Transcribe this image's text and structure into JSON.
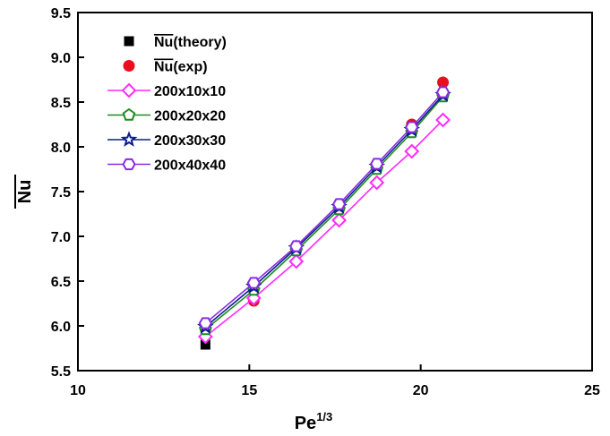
{
  "chart_data": {
    "type": "line",
    "xlabel": "Pe",
    "xlabel_sup": "1/3",
    "ylabel": "Nu",
    "ylabel_overline": true,
    "xlim": [
      10,
      25
    ],
    "ylim": [
      5.5,
      9.5
    ],
    "xticks": [
      10,
      15,
      20,
      25
    ],
    "yticks": [
      5.5,
      6.0,
      6.5,
      7.0,
      7.5,
      8.0,
      8.5,
      9.0,
      9.5
    ],
    "ytick_labels": [
      "5.5",
      "6.0",
      "6.5",
      "7.0",
      "7.5",
      "8.0",
      "8.5",
      "9.0",
      "9.5"
    ],
    "grid": false,
    "legend_position": "top-left",
    "series": [
      {
        "name": "Nu(theory)",
        "overline": "Nu",
        "suffix": "(theory)",
        "marker": "square",
        "color": "#000000",
        "line": false,
        "x": [
          13.72
        ],
        "y": [
          5.79
        ]
      },
      {
        "name": "Nu(exp)",
        "overline": "Nu",
        "suffix": "(exp)",
        "marker": "circle",
        "color": "#e8101e",
        "line": false,
        "x": [
          15.13,
          19.74,
          20.65
        ],
        "y": [
          6.28,
          8.25,
          8.72
        ]
      },
      {
        "name": "200x10x10",
        "marker": "diamond",
        "color": "#ff2bff",
        "line": true,
        "x": [
          13.72,
          15.13,
          16.37,
          17.62,
          18.72,
          19.74,
          20.65
        ],
        "y": [
          5.88,
          6.31,
          6.72,
          7.18,
          7.6,
          7.95,
          8.3
        ]
      },
      {
        "name": "200x20x20",
        "marker": "pentagon",
        "color": "#1f8c1f",
        "line": true,
        "x": [
          13.72,
          15.13,
          16.37,
          17.62,
          18.72,
          19.74,
          20.65
        ],
        "y": [
          5.96,
          6.4,
          6.84,
          7.3,
          7.75,
          8.16,
          8.56
        ]
      },
      {
        "name": "200x30x30",
        "marker": "star",
        "color": "#0a1f8f",
        "line": true,
        "x": [
          13.72,
          15.13,
          16.37,
          17.62,
          18.72,
          19.74,
          20.65
        ],
        "y": [
          5.99,
          6.44,
          6.87,
          7.33,
          7.78,
          8.19,
          8.58
        ]
      },
      {
        "name": "200x40x40",
        "marker": "hexagon",
        "color": "#8a2be2",
        "line": true,
        "x": [
          13.72,
          15.13,
          16.37,
          17.62,
          18.72,
          19.74,
          20.65
        ],
        "y": [
          6.03,
          6.48,
          6.89,
          7.36,
          7.81,
          8.22,
          8.61
        ]
      }
    ]
  }
}
